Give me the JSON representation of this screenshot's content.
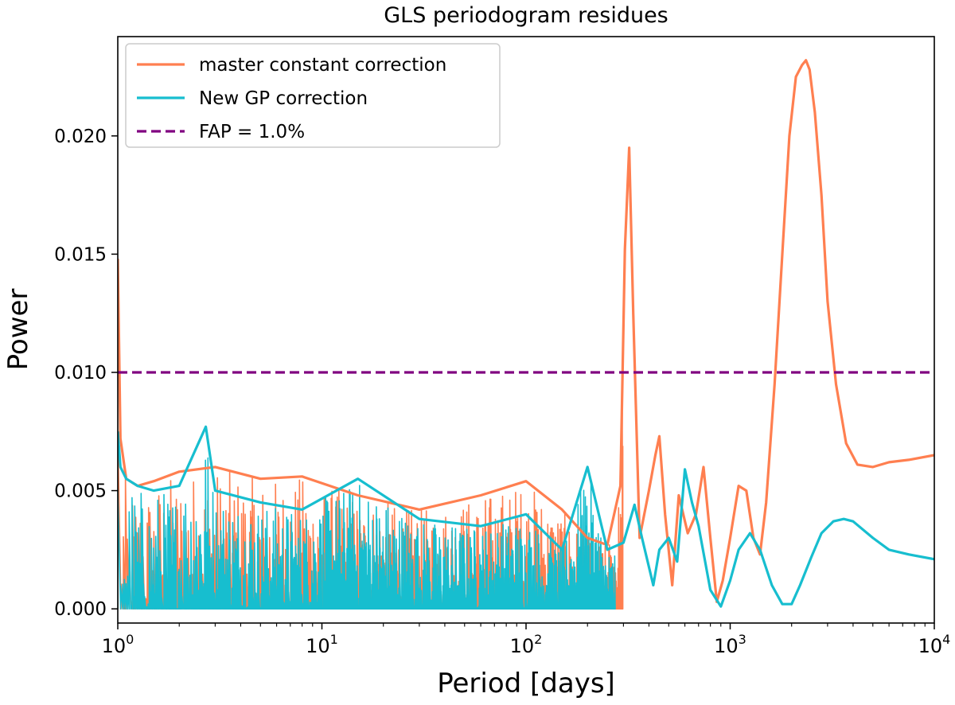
{
  "chart_data": {
    "type": "line",
    "title": "GLS periodogram residues",
    "xlabel": "Period [days]",
    "ylabel": "Power",
    "xscale": "log",
    "xlim": [
      1,
      10000
    ],
    "ylim": [
      -0.0006,
      0.0242
    ],
    "x_ticks": [
      {
        "value": 1,
        "base": "10",
        "exp": "0"
      },
      {
        "value": 10,
        "base": "10",
        "exp": "1"
      },
      {
        "value": 100,
        "base": "10",
        "exp": "2"
      },
      {
        "value": 1000,
        "base": "10",
        "exp": "3"
      },
      {
        "value": 10000,
        "base": "10",
        "exp": "4"
      }
    ],
    "y_ticks": [
      {
        "value": 0.0,
        "label": "0.000"
      },
      {
        "value": 0.005,
        "label": "0.005"
      },
      {
        "value": 0.01,
        "label": "0.010"
      },
      {
        "value": 0.015,
        "label": "0.015"
      },
      {
        "value": 0.02,
        "label": "0.020"
      }
    ],
    "grid": false,
    "legend_position": "top-left",
    "series": [
      {
        "name": "master constant correction",
        "color": "#ff7f50",
        "style": "solid",
        "x": [
          1.0,
          1.03,
          1.1,
          1.25,
          1.5,
          2.0,
          3.0,
          5.0,
          8.0,
          15.0,
          30.0,
          60.0,
          100.0,
          150.0,
          200.0,
          250.0,
          290.0,
          305.0,
          320.0,
          335.0,
          360.0,
          400.0,
          430.0,
          450.0,
          480.0,
          520.0,
          560.0,
          620.0,
          680.0,
          740.0,
          800.0,
          860.0,
          920.0,
          1000.0,
          1100.0,
          1200.0,
          1300.0,
          1400.0,
          1500.0,
          1650.0,
          1800.0,
          1950.0,
          2100.0,
          2250.0,
          2350.0,
          2450.0,
          2600.0,
          2800.0,
          3000.0,
          3300.0,
          3700.0,
          4200.0,
          5000.0,
          6000.0,
          7500.0,
          10000.0
        ],
        "y": [
          0.0148,
          0.0072,
          0.0055,
          0.0052,
          0.0054,
          0.0058,
          0.006,
          0.0055,
          0.0056,
          0.0048,
          0.0042,
          0.0048,
          0.0054,
          0.0042,
          0.003,
          0.0027,
          0.0052,
          0.0152,
          0.0195,
          0.0125,
          0.003,
          0.005,
          0.0065,
          0.0073,
          0.004,
          0.001,
          0.0048,
          0.0032,
          0.004,
          0.006,
          0.003,
          0.0003,
          0.0012,
          0.003,
          0.0052,
          0.005,
          0.003,
          0.0023,
          0.0045,
          0.0095,
          0.015,
          0.02,
          0.0225,
          0.023,
          0.0232,
          0.0228,
          0.021,
          0.0175,
          0.013,
          0.0095,
          0.007,
          0.0061,
          0.006,
          0.0062,
          0.0063,
          0.0065
        ]
      },
      {
        "name": "New GP correction",
        "color": "#17becf",
        "style": "solid",
        "x": [
          1.0,
          1.03,
          1.1,
          1.25,
          1.5,
          2.0,
          2.7,
          3.0,
          5.0,
          8.0,
          15.0,
          30.0,
          60.0,
          100.0,
          150.0,
          200.0,
          250.0,
          300.0,
          340.0,
          370.0,
          420.0,
          450.0,
          500.0,
          550.0,
          600.0,
          650.0,
          700.0,
          800.0,
          900.0,
          1000.0,
          1100.0,
          1250.0,
          1400.0,
          1600.0,
          1800.0,
          2000.0,
          2200.0,
          2500.0,
          2800.0,
          3200.0,
          3600.0,
          4000.0,
          5000.0,
          6000.0,
          7500.0,
          10000.0
        ],
        "y": [
          0.0075,
          0.006,
          0.0055,
          0.0052,
          0.005,
          0.0052,
          0.0077,
          0.005,
          0.0045,
          0.0042,
          0.0055,
          0.0038,
          0.0035,
          0.004,
          0.0025,
          0.006,
          0.0025,
          0.0028,
          0.0044,
          0.003,
          0.001,
          0.0025,
          0.003,
          0.002,
          0.0059,
          0.0045,
          0.0035,
          0.0008,
          0.0001,
          0.0012,
          0.0025,
          0.0032,
          0.0025,
          0.001,
          0.0002,
          0.0002,
          0.001,
          0.0022,
          0.0032,
          0.0037,
          0.0038,
          0.0037,
          0.003,
          0.0025,
          0.0023,
          0.0021
        ]
      },
      {
        "name": "FAP =  1.0%",
        "color": "#800080",
        "style": "dashed",
        "x": [
          1,
          10000
        ],
        "y": [
          0.01,
          0.01
        ]
      }
    ]
  }
}
